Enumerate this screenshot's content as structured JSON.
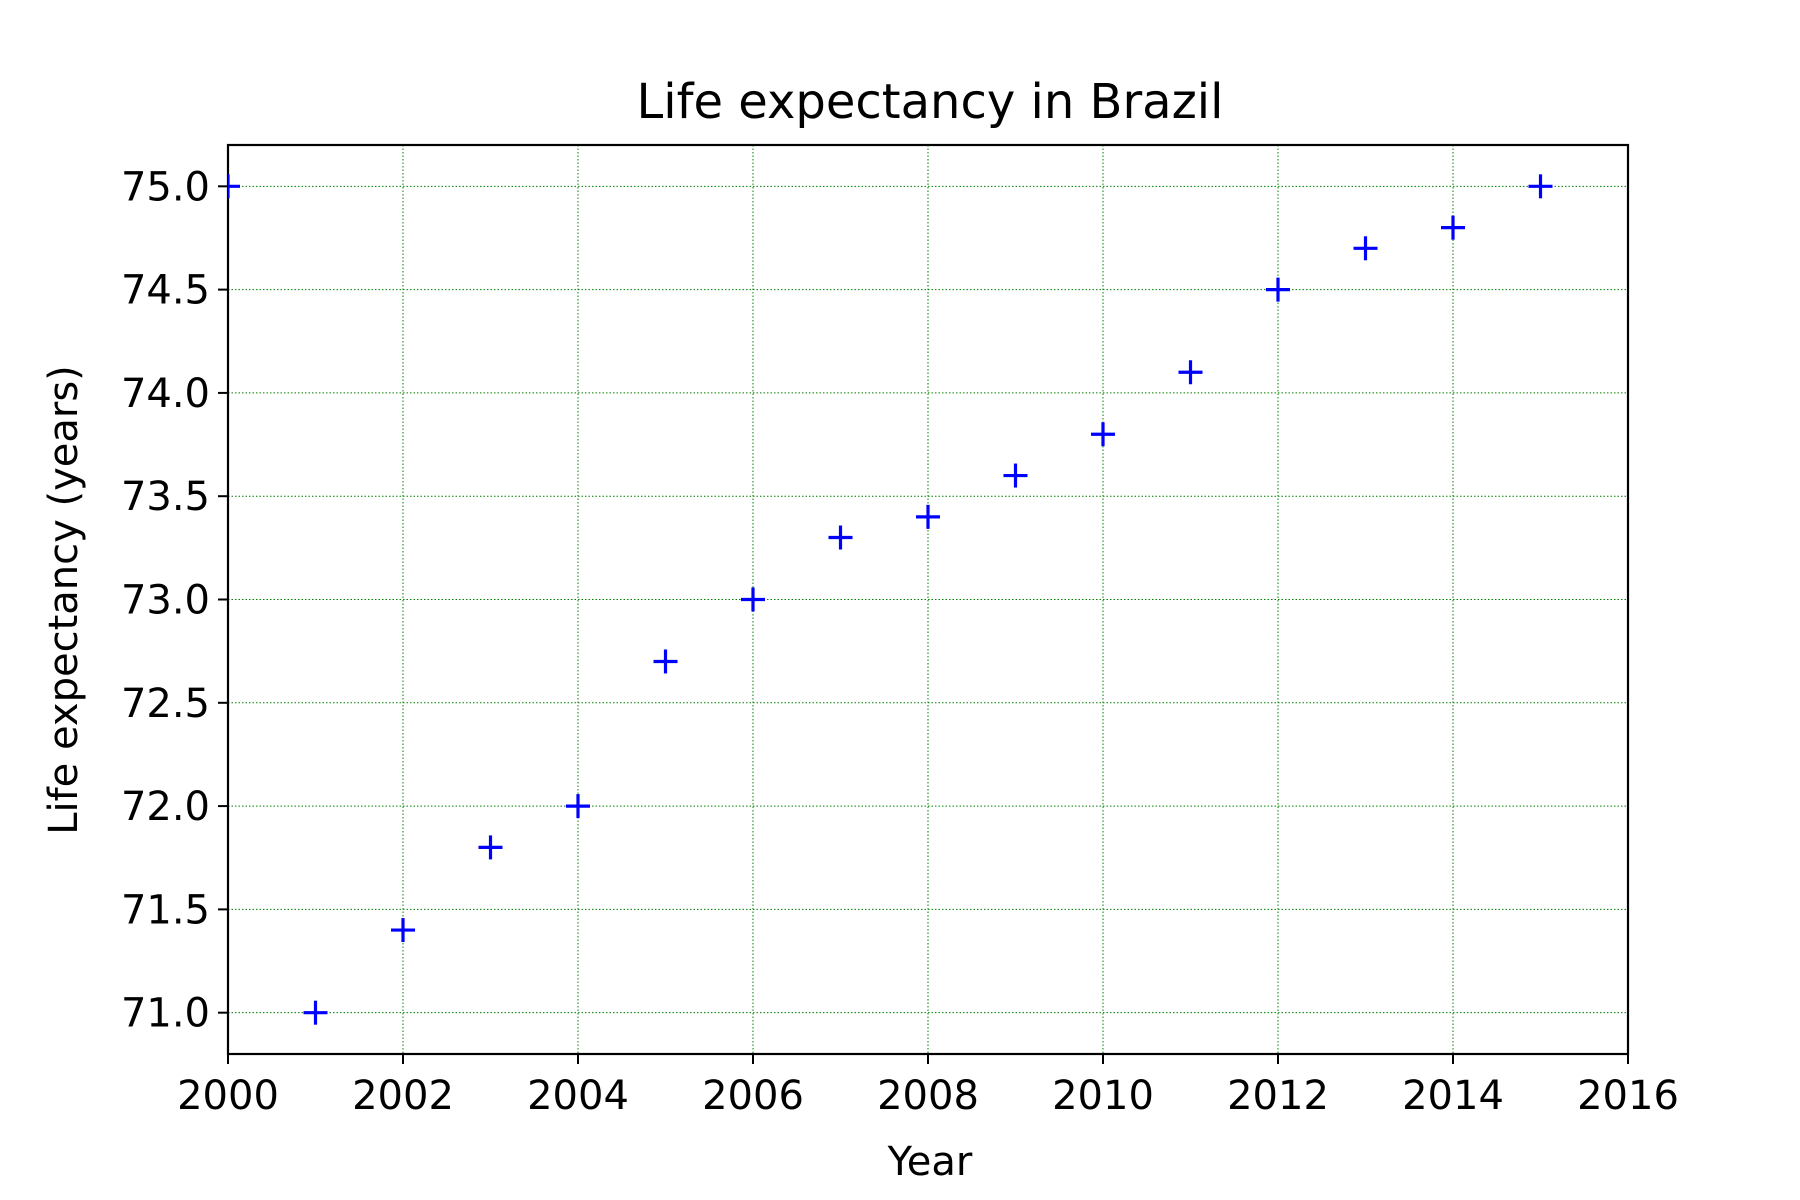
{
  "chart_data": {
    "type": "scatter",
    "title": "Life expectancy in Brazil",
    "xlabel": "Year",
    "ylabel": "Life expectancy (years)",
    "xlim": [
      2000,
      2016
    ],
    "ylim": [
      70.8,
      75.2
    ],
    "xticks": [
      2000,
      2002,
      2004,
      2006,
      2008,
      2010,
      2012,
      2014,
      2016
    ],
    "xtick_labels": [
      "2000",
      "2002",
      "2004",
      "2006",
      "2008",
      "2010",
      "2012",
      "2014",
      "2016"
    ],
    "yticks": [
      71.0,
      71.5,
      72.0,
      72.5,
      73.0,
      73.5,
      74.0,
      74.5,
      75.0
    ],
    "ytick_labels": [
      "71.0",
      "71.5",
      "72.0",
      "72.5",
      "73.0",
      "73.5",
      "74.0",
      "74.5",
      "75.0"
    ],
    "grid": true,
    "grid_color": "#008000",
    "marker": "plus",
    "marker_color": "#0000ff",
    "series": [
      {
        "x": [
          2000,
          2001,
          2002,
          2003,
          2004,
          2005,
          2006,
          2007,
          2008,
          2009,
          2010,
          2011,
          2012,
          2013,
          2014,
          2015
        ],
        "y": [
          75.0,
          71.0,
          71.4,
          71.8,
          72.0,
          72.7,
          73.0,
          73.3,
          73.4,
          73.6,
          73.8,
          74.1,
          74.5,
          74.7,
          74.8,
          75.0
        ]
      }
    ]
  }
}
